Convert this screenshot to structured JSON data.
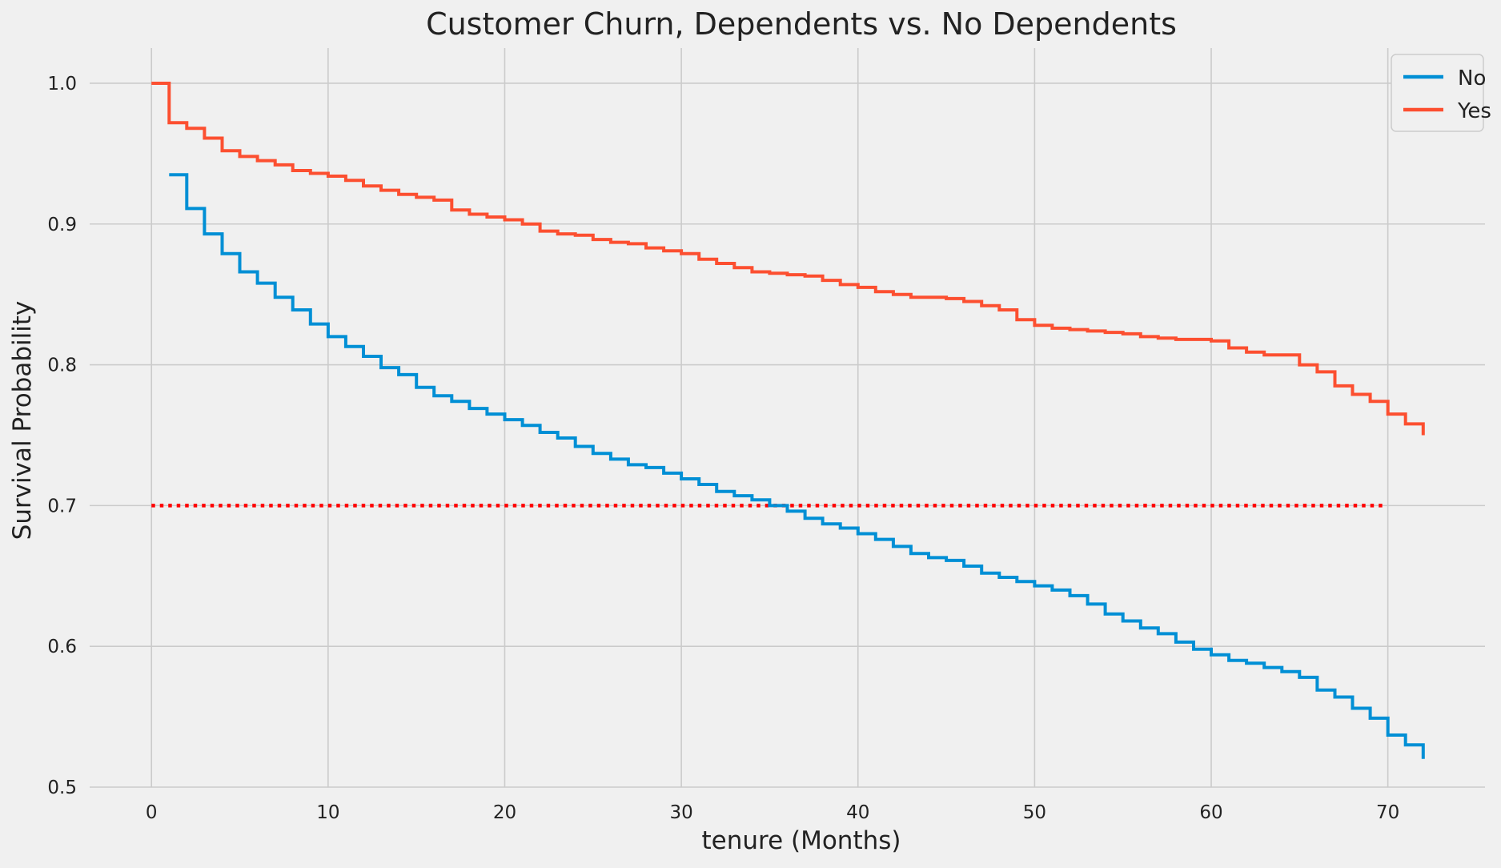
{
  "chart_data": {
    "type": "line",
    "title": "Customer Churn, Dependents vs. No Dependents",
    "xlabel": "tenure (Months)",
    "ylabel": "Survival Probability",
    "xlim": [
      -3.5,
      75.5
    ],
    "ylim": [
      0.5,
      1.025
    ],
    "xticks": [
      0,
      10,
      20,
      30,
      40,
      50,
      60,
      70
    ],
    "xtick_labels": [
      "0",
      "10",
      "20",
      "30",
      "40",
      "50",
      "60",
      "70"
    ],
    "yticks": [
      0.5,
      0.6,
      0.7,
      0.8,
      0.9,
      1.0
    ],
    "ytick_labels": [
      "0.5",
      "0.6",
      "0.7",
      "0.8",
      "0.9",
      "1.0"
    ],
    "grid": true,
    "legend_position": "top-right",
    "step": "post",
    "series": [
      {
        "name": "No",
        "color": "#008fd5",
        "x": [
          1,
          2,
          3,
          4,
          5,
          6,
          7,
          8,
          9,
          10,
          11,
          12,
          13,
          14,
          15,
          16,
          17,
          18,
          19,
          20,
          21,
          22,
          23,
          24,
          25,
          26,
          27,
          28,
          29,
          30,
          31,
          32,
          33,
          34,
          35,
          36,
          37,
          38,
          39,
          40,
          41,
          42,
          43,
          44,
          45,
          46,
          47,
          48,
          49,
          50,
          51,
          52,
          53,
          54,
          55,
          56,
          57,
          58,
          59,
          60,
          61,
          62,
          63,
          64,
          65,
          66,
          67,
          68,
          69,
          70,
          71,
          72
        ],
        "y": [
          0.935,
          0.911,
          0.893,
          0.879,
          0.866,
          0.858,
          0.848,
          0.839,
          0.829,
          0.82,
          0.813,
          0.806,
          0.798,
          0.793,
          0.784,
          0.778,
          0.774,
          0.769,
          0.765,
          0.761,
          0.757,
          0.752,
          0.748,
          0.742,
          0.737,
          0.733,
          0.729,
          0.727,
          0.723,
          0.719,
          0.715,
          0.71,
          0.707,
          0.704,
          0.7,
          0.696,
          0.691,
          0.687,
          0.684,
          0.68,
          0.676,
          0.671,
          0.666,
          0.663,
          0.661,
          0.657,
          0.652,
          0.649,
          0.646,
          0.643,
          0.64,
          0.636,
          0.63,
          0.623,
          0.618,
          0.613,
          0.609,
          0.603,
          0.598,
          0.594,
          0.59,
          0.588,
          0.585,
          0.582,
          0.578,
          0.569,
          0.564,
          0.556,
          0.549,
          0.537,
          0.53,
          0.52
        ]
      },
      {
        "name": "Yes",
        "color": "#fc4f30",
        "x": [
          0,
          1,
          2,
          3,
          4,
          5,
          6,
          7,
          8,
          9,
          10,
          11,
          12,
          13,
          14,
          15,
          16,
          17,
          18,
          19,
          20,
          21,
          22,
          23,
          24,
          25,
          26,
          27,
          28,
          29,
          30,
          31,
          32,
          33,
          34,
          35,
          36,
          37,
          38,
          39,
          40,
          41,
          42,
          43,
          44,
          45,
          46,
          47,
          48,
          49,
          50,
          51,
          52,
          53,
          54,
          55,
          56,
          57,
          58,
          59,
          60,
          61,
          62,
          63,
          64,
          65,
          66,
          67,
          68,
          69,
          70,
          71,
          72
        ],
        "y": [
          1.0,
          0.972,
          0.968,
          0.961,
          0.952,
          0.948,
          0.945,
          0.942,
          0.938,
          0.936,
          0.934,
          0.931,
          0.927,
          0.924,
          0.921,
          0.919,
          0.917,
          0.91,
          0.907,
          0.905,
          0.903,
          0.9,
          0.895,
          0.893,
          0.892,
          0.889,
          0.887,
          0.886,
          0.883,
          0.881,
          0.879,
          0.875,
          0.872,
          0.869,
          0.866,
          0.865,
          0.864,
          0.863,
          0.86,
          0.857,
          0.855,
          0.852,
          0.85,
          0.848,
          0.848,
          0.847,
          0.845,
          0.842,
          0.839,
          0.832,
          0.828,
          0.826,
          0.825,
          0.824,
          0.823,
          0.822,
          0.82,
          0.819,
          0.818,
          0.818,
          0.817,
          0.812,
          0.809,
          0.807,
          0.807,
          0.8,
          0.795,
          0.785,
          0.779,
          0.774,
          0.765,
          0.758,
          0.75
        ]
      }
    ],
    "reference_line": {
      "y": 0.7,
      "x_start": 0,
      "x_end": 69.7,
      "color": "#ff0000",
      "style": "dotted"
    }
  }
}
